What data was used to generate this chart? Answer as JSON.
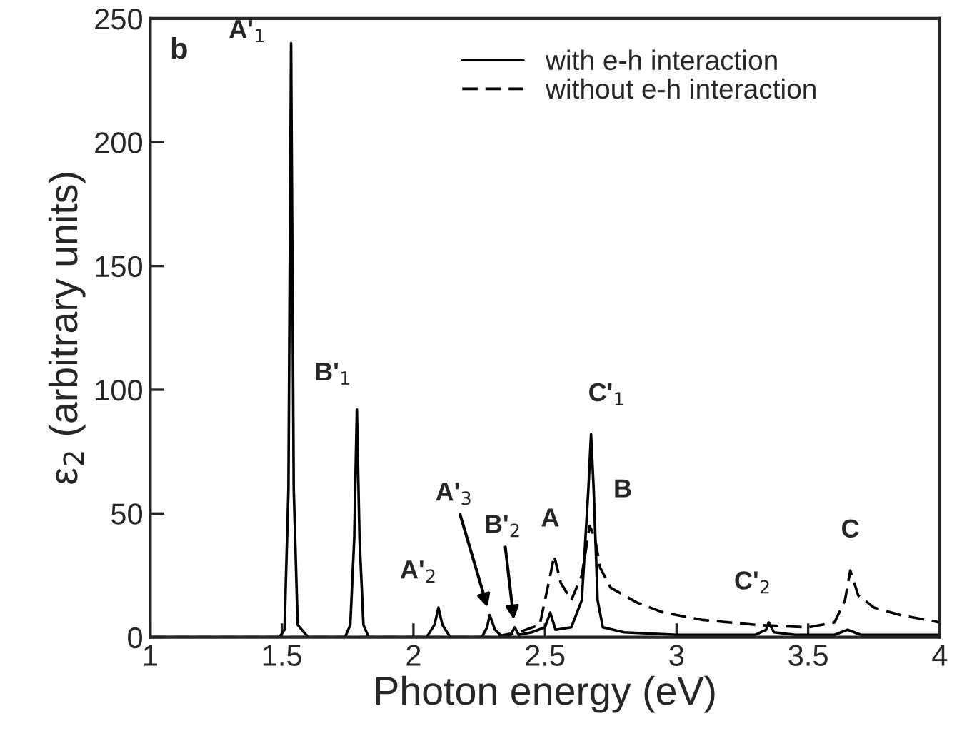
{
  "chart_data": {
    "type": "line",
    "xlabel": "Photon energy (eV)",
    "ylabel": "ε$_{2}$ (arbitrary units)",
    "xlim": [
      1,
      4
    ],
    "ylim": [
      0,
      250
    ],
    "xticks": [
      1,
      1.5,
      2,
      2.5,
      3,
      3.5,
      4
    ],
    "yticks": [
      0,
      50,
      100,
      150,
      200,
      250
    ],
    "grid": false,
    "legend": "top right",
    "marker": "none",
    "series": [
      {
        "name": "with e-h interaction",
        "color": "#000000",
        "line_style": "solid",
        "x": [
          1.0,
          1.49,
          1.51,
          1.525,
          1.535,
          1.545,
          1.56,
          1.6,
          1.74,
          1.76,
          1.775,
          1.785,
          1.795,
          1.81,
          1.83,
          2.05,
          2.08,
          2.095,
          2.11,
          2.14,
          2.26,
          2.28,
          2.29,
          2.31,
          2.34,
          2.37,
          2.385,
          2.4,
          2.45,
          2.5,
          2.52,
          2.54,
          2.6,
          2.64,
          2.665,
          2.675,
          2.685,
          2.7,
          2.72,
          2.8,
          3.0,
          3.3,
          3.34,
          3.35,
          3.37,
          3.45,
          3.6,
          3.65,
          3.7,
          4.0
        ],
        "values": [
          0,
          0,
          3,
          60,
          240,
          60,
          5,
          0,
          0,
          5,
          40,
          92,
          40,
          5,
          0,
          0,
          5,
          12,
          5,
          0,
          0,
          4,
          9,
          3,
          0,
          1,
          4,
          1,
          2,
          4,
          10,
          3,
          4,
          15,
          60,
          82,
          60,
          15,
          4,
          2,
          1,
          1,
          3,
          6,
          2,
          1,
          1,
          3,
          1,
          1
        ]
      },
      {
        "name": "without e-h interaction",
        "color": "#000000",
        "line_style": "dashed",
        "x": [
          1.0,
          2.3,
          2.4,
          2.48,
          2.52,
          2.535,
          2.56,
          2.6,
          2.64,
          2.67,
          2.69,
          2.71,
          2.75,
          2.85,
          2.95,
          3.1,
          3.3,
          3.5,
          3.6,
          3.64,
          3.66,
          3.69,
          3.75,
          3.85,
          4.0
        ],
        "values": [
          0,
          0,
          2,
          5,
          25,
          33,
          22,
          15,
          25,
          45,
          40,
          28,
          20,
          14,
          10,
          7,
          5,
          4,
          6,
          15,
          27,
          17,
          12,
          9,
          6
        ]
      }
    ],
    "annotations": [
      "b",
      {
        "text": "A'$_{1}$",
        "x": 1.535,
        "y": 240
      },
      {
        "text": "B'$_{1}$",
        "x": 1.785,
        "y": 92
      },
      {
        "text": "A'$_{2}$",
        "x": 2.095,
        "y": 12
      },
      {
        "text": "A'$_{3}$",
        "x": 2.29,
        "y": 9
      },
      {
        "text": "B'$_{2}$",
        "x": 2.385,
        "y": 4
      },
      {
        "text": "A",
        "x": 2.535,
        "y": 33
      },
      {
        "text": "B",
        "x": 2.69,
        "y": 40
      },
      {
        "text": "C'$_{1}$",
        "x": 2.675,
        "y": 82
      },
      {
        "text": "C'$_{2}$",
        "x": 3.35,
        "y": 6
      },
      {
        "text": "C",
        "x": 3.66,
        "y": 27
      }
    ]
  }
}
